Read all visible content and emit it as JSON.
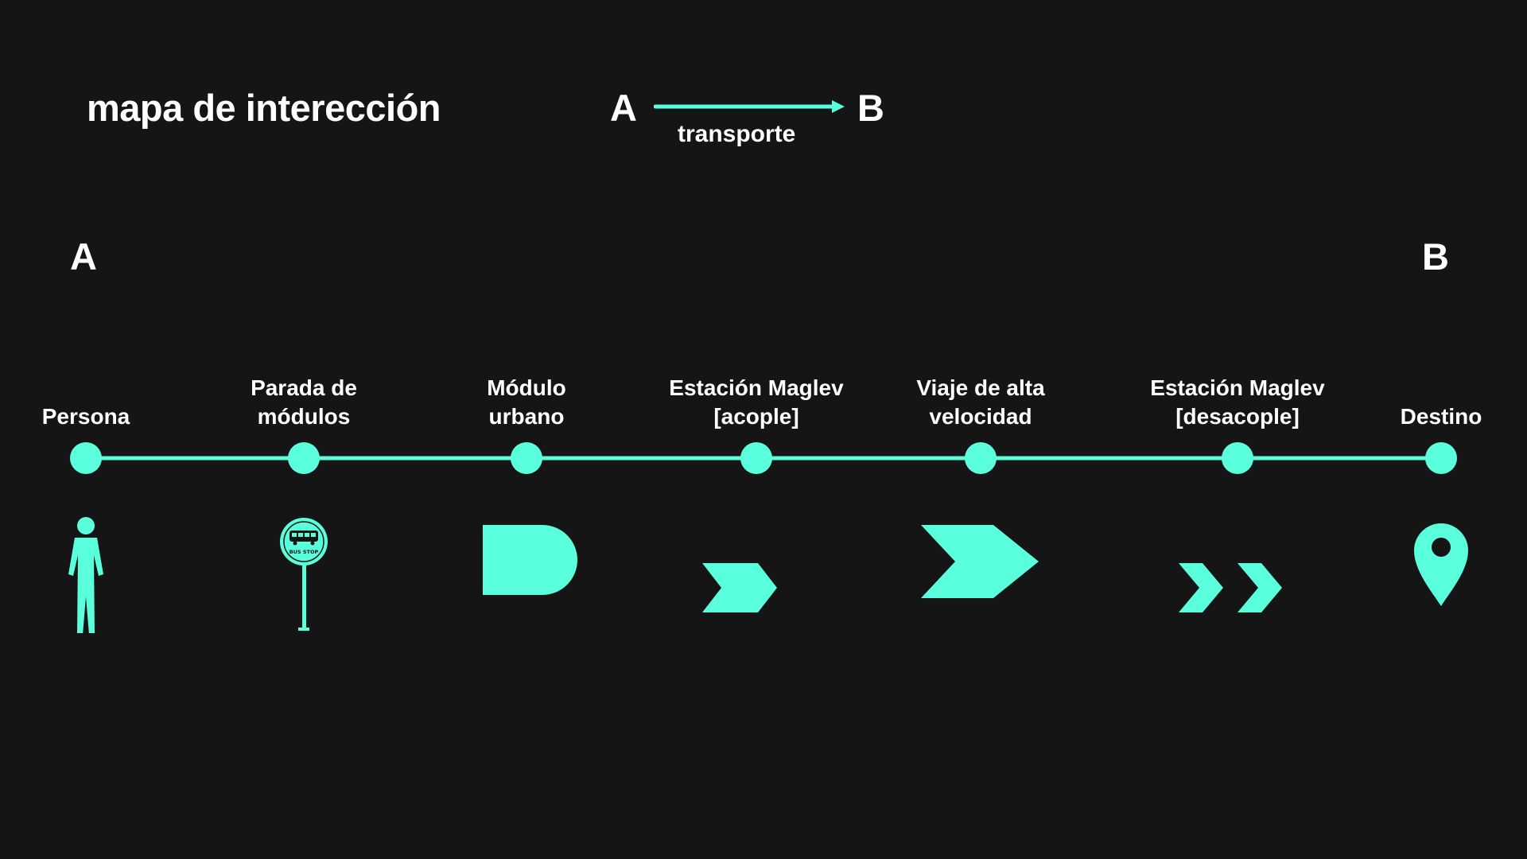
{
  "title": "mapa de interección",
  "accent_color": "#5affdc",
  "background_color": "#151515",
  "legend": {
    "from": "A",
    "to": "B",
    "label": "transporte"
  },
  "endpoints": {
    "start": "A",
    "end": "B"
  },
  "stages": [
    {
      "lines": [
        "Persona"
      ],
      "icon": "person-icon"
    },
    {
      "lines": [
        "Parada de",
        "módulos"
      ],
      "icon": "bus-stop-icon",
      "sign_text": "BUS STOP"
    },
    {
      "lines": [
        "Módulo",
        "urbano"
      ],
      "icon": "urban-module-icon"
    },
    {
      "lines": [
        "Estación Maglev",
        "[acople]"
      ],
      "icon": "double-chevron-icon"
    },
    {
      "lines": [
        "Viaje de alta",
        "velocidad"
      ],
      "icon": "large-chevron-icon"
    },
    {
      "lines": [
        "Estación Maglev",
        "[desacople]"
      ],
      "icon": "separated-chevrons-icon"
    },
    {
      "lines": [
        "Destino"
      ],
      "icon": "location-pin-icon"
    }
  ]
}
